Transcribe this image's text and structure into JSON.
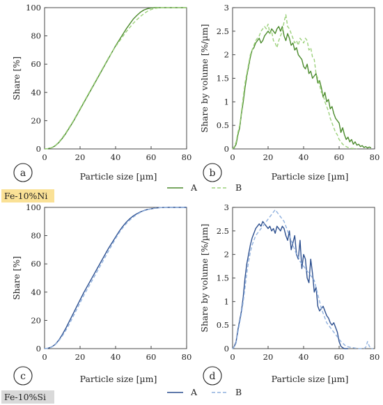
{
  "colors": {
    "ni_a": "#4a8a2b",
    "ni_b": "#9bd07a",
    "si_a": "#2c4f8f",
    "si_b": "#8fb0de",
    "ni_box": "#fae196",
    "si_box": "#d9d9d9"
  },
  "groups": [
    {
      "id": "ni",
      "label": "Fe-10%Ni",
      "legend": {
        "a": "A",
        "b": "B"
      }
    },
    {
      "id": "si",
      "label": "Fe-10%Si",
      "legend": {
        "a": "A",
        "b": "B"
      }
    }
  ],
  "chart_data": [
    {
      "panel": "a",
      "type": "line",
      "xlabel": "Particle size  [µm]",
      "ylabel": "Share [%]",
      "xlim": [
        0,
        80
      ],
      "ylim": [
        0,
        100
      ],
      "xticks": [
        0,
        20,
        40,
        60,
        80
      ],
      "yticks": [
        0,
        20,
        40,
        60,
        80,
        100
      ],
      "series": [
        {
          "name": "A",
          "style": "solid",
          "color": "#4a8a2b",
          "x": [
            0,
            2,
            4,
            6,
            8,
            10,
            12,
            14,
            16,
            18,
            20,
            22,
            24,
            26,
            28,
            30,
            32,
            34,
            36,
            38,
            40,
            42,
            44,
            46,
            48,
            50,
            52,
            54,
            56,
            58,
            60,
            62,
            64,
            66,
            70,
            75,
            80
          ],
          "y": [
            0,
            0.2,
            0.8,
            2.2,
            4.5,
            7.5,
            11,
            15,
            19,
            23.5,
            28,
            32.5,
            37,
            41.5,
            46,
            50.5,
            55,
            59.5,
            64,
            68.5,
            73,
            77,
            81,
            85,
            88.5,
            92,
            94.5,
            96.8,
            98.4,
            99.3,
            99.8,
            100,
            100,
            100,
            100,
            100,
            100
          ]
        },
        {
          "name": "B",
          "style": "dashed",
          "color": "#9bd07a",
          "x": [
            0,
            2,
            4,
            6,
            8,
            10,
            12,
            14,
            16,
            18,
            20,
            22,
            24,
            26,
            28,
            30,
            32,
            34,
            36,
            38,
            40,
            42,
            44,
            46,
            48,
            50,
            52,
            54,
            56,
            58,
            60,
            62,
            64,
            66,
            70,
            75,
            80
          ],
          "y": [
            0,
            0.2,
            0.9,
            2.4,
            4.8,
            8,
            11.5,
            15.5,
            19.5,
            24,
            28.5,
            33,
            37.5,
            42,
            46.5,
            51,
            55.5,
            60,
            64.5,
            68.5,
            72.5,
            76,
            79.5,
            83,
            86,
            89,
            91.5,
            93.8,
            95.8,
            97.5,
            98.7,
            99.4,
            99.8,
            100,
            100,
            100,
            100
          ]
        }
      ]
    },
    {
      "panel": "b",
      "type": "line",
      "xlabel": "Particle size  [µm]",
      "ylabel": "Share by volume [%/µm]",
      "xlim": [
        0,
        80
      ],
      "ylim": [
        0,
        3
      ],
      "xticks": [
        0,
        20,
        40,
        60,
        80
      ],
      "yticks": [
        0,
        0.5,
        1,
        1.5,
        2,
        2.5,
        3
      ],
      "series": [
        {
          "name": "A",
          "style": "solid",
          "color": "#4a8a2b",
          "x": [
            0,
            1,
            2,
            3,
            4,
            5,
            6,
            7,
            8,
            9,
            10,
            11,
            12,
            13,
            14,
            15,
            16,
            17,
            18,
            19,
            20,
            21,
            22,
            23,
            24,
            25,
            26,
            27,
            28,
            29,
            30,
            31,
            32,
            33,
            34,
            35,
            36,
            37,
            38,
            39,
            40,
            41,
            42,
            43,
            44,
            45,
            46,
            47,
            48,
            49,
            50,
            51,
            52,
            53,
            54,
            55,
            56,
            57,
            58,
            59,
            60,
            61,
            62,
            63,
            64,
            65,
            66,
            67,
            68,
            69,
            70,
            71,
            72,
            73,
            74,
            75,
            76,
            77,
            78
          ],
          "y": [
            0,
            0.03,
            0.1,
            0.3,
            0.45,
            0.75,
            1.0,
            1.3,
            1.55,
            1.75,
            1.95,
            2.1,
            2.15,
            2.25,
            2.3,
            2.35,
            2.25,
            2.3,
            2.4,
            2.45,
            2.5,
            2.45,
            2.55,
            2.5,
            2.45,
            2.55,
            2.6,
            2.5,
            2.6,
            2.4,
            2.3,
            2.45,
            2.35,
            2.2,
            2.25,
            2.1,
            2.15,
            2.0,
            1.95,
            1.9,
            1.75,
            1.7,
            1.8,
            1.6,
            1.65,
            1.5,
            1.55,
            1.6,
            1.4,
            1.45,
            1.3,
            1.1,
            1.2,
            1.0,
            1.05,
            0.85,
            0.9,
            0.75,
            0.65,
            0.6,
            0.55,
            0.35,
            0.45,
            0.3,
            0.2,
            0.25,
            0.15,
            0.2,
            0.1,
            0.15,
            0.08,
            0.1,
            0.05,
            0.07,
            0.03,
            0.05,
            0.02,
            0.04,
            0.02
          ]
        },
        {
          "name": "B",
          "style": "dashed",
          "color": "#9bd07a",
          "x": [
            0,
            1,
            2,
            3,
            4,
            5,
            6,
            7,
            8,
            9,
            10,
            11,
            12,
            13,
            14,
            15,
            16,
            17,
            18,
            19,
            20,
            21,
            22,
            23,
            24,
            25,
            26,
            27,
            28,
            29,
            30,
            31,
            32,
            33,
            34,
            35,
            36,
            37,
            38,
            39,
            40,
            41,
            42,
            43,
            44,
            45,
            46,
            47,
            48,
            49,
            50,
            51,
            52,
            53,
            54,
            55,
            56,
            57,
            58,
            59,
            60,
            61,
            62,
            63,
            64,
            65,
            66,
            67,
            68,
            69,
            70
          ],
          "y": [
            0,
            0.05,
            0.15,
            0.35,
            0.5,
            0.8,
            1.1,
            1.4,
            1.6,
            1.8,
            2.0,
            2.1,
            2.2,
            2.3,
            2.35,
            2.4,
            2.5,
            2.55,
            2.6,
            2.55,
            2.65,
            2.45,
            2.5,
            2.3,
            2.25,
            2.15,
            2.3,
            2.4,
            2.5,
            2.7,
            2.85,
            2.6,
            2.55,
            2.45,
            2.35,
            2.25,
            2.3,
            2.2,
            2.35,
            2.3,
            2.25,
            2.35,
            2.3,
            2.1,
            2.15,
            1.95,
            1.9,
            1.6,
            1.5,
            1.35,
            1.2,
            1.15,
            1.0,
            0.9,
            0.8,
            0.65,
            0.55,
            0.45,
            0.35,
            0.3,
            0.2,
            0.15,
            0.1,
            0.07,
            0.05,
            0.03,
            0.02,
            0.01,
            0.01,
            0,
            0
          ]
        }
      ]
    },
    {
      "panel": "c",
      "type": "line",
      "xlabel": "Particle size [µm]",
      "ylabel": "Share [%]",
      "xlim": [
        0,
        80
      ],
      "ylim": [
        0,
        100
      ],
      "xticks": [
        0,
        20,
        40,
        60,
        80
      ],
      "yticks": [
        0,
        20,
        40,
        60,
        80,
        100
      ],
      "series": [
        {
          "name": "A",
          "style": "solid",
          "color": "#2c4f8f",
          "x": [
            0,
            2,
            4,
            6,
            8,
            10,
            12,
            14,
            16,
            18,
            20,
            22,
            24,
            26,
            28,
            30,
            32,
            34,
            36,
            38,
            40,
            42,
            44,
            46,
            48,
            50,
            52,
            54,
            56,
            58,
            60,
            62,
            64,
            66,
            70,
            75,
            80
          ],
          "y": [
            0,
            0.3,
            1.2,
            3,
            6,
            10,
            14.5,
            19.5,
            24.5,
            29.5,
            34.5,
            39.5,
            44,
            48.5,
            53,
            57.5,
            62,
            66.5,
            71,
            75,
            79,
            83,
            86.5,
            89.5,
            92,
            94,
            95.5,
            96.8,
            97.8,
            98.5,
            99,
            99.4,
            99.7,
            99.9,
            100,
            100,
            100
          ]
        },
        {
          "name": "B",
          "style": "dashed",
          "color": "#8fb0de",
          "x": [
            0,
            2,
            4,
            6,
            8,
            10,
            12,
            14,
            16,
            18,
            20,
            22,
            24,
            26,
            28,
            30,
            32,
            34,
            36,
            38,
            40,
            42,
            44,
            46,
            48,
            50,
            52,
            54,
            56,
            58,
            60,
            62,
            64,
            66,
            70,
            75,
            80
          ],
          "y": [
            0,
            0.3,
            1.1,
            2.8,
            5.5,
            9,
            13,
            17.5,
            22.5,
            27.5,
            32.5,
            37.5,
            42,
            46.5,
            51,
            55.5,
            60,
            64.5,
            69,
            73.5,
            78,
            82,
            85.5,
            88.5,
            91,
            93.2,
            95,
            96.5,
            97.6,
            98.4,
            99,
            99.4,
            99.7,
            99.9,
            100,
            100,
            100
          ]
        }
      ]
    },
    {
      "panel": "d",
      "type": "line",
      "xlabel": "Particle size [µm]",
      "ylabel": "Share by volume [%/µm]",
      "xlim": [
        0,
        80
      ],
      "ylim": [
        0,
        3
      ],
      "xticks": [
        0,
        20,
        40,
        60,
        80
      ],
      "yticks": [
        0,
        0.5,
        1,
        1.5,
        2,
        2.5,
        3
      ],
      "series": [
        {
          "name": "A",
          "style": "solid",
          "color": "#2c4f8f",
          "x": [
            0,
            1,
            2,
            3,
            4,
            5,
            6,
            7,
            8,
            9,
            10,
            11,
            12,
            13,
            14,
            15,
            16,
            17,
            18,
            19,
            20,
            21,
            22,
            23,
            24,
            25,
            26,
            27,
            28,
            29,
            30,
            31,
            32,
            33,
            34,
            35,
            36,
            37,
            38,
            39,
            40,
            41,
            42,
            43,
            44,
            45,
            46,
            47,
            48,
            49,
            50,
            51,
            52,
            53,
            54,
            55,
            56,
            57,
            58,
            59,
            60,
            61,
            62,
            63,
            64,
            65
          ],
          "y": [
            0,
            0.05,
            0.15,
            0.4,
            0.6,
            0.8,
            1.1,
            1.5,
            1.8,
            2.0,
            2.2,
            2.35,
            2.45,
            2.55,
            2.6,
            2.65,
            2.6,
            2.7,
            2.65,
            2.6,
            2.55,
            2.6,
            2.5,
            2.55,
            2.45,
            2.6,
            2.55,
            2.5,
            2.6,
            2.55,
            2.4,
            2.3,
            2.5,
            2.1,
            2.25,
            2.4,
            2.0,
            1.9,
            2.3,
            1.7,
            2.0,
            1.9,
            1.5,
            1.4,
            1.9,
            1.6,
            1.2,
            1.3,
            0.9,
            0.8,
            0.85,
            0.9,
            0.8,
            0.7,
            0.65,
            0.55,
            0.5,
            0.55,
            0.45,
            0.35,
            0.15,
            0.05,
            0.02,
            0,
            0,
            0
          ]
        },
        {
          "name": "B",
          "style": "dashed",
          "color": "#8fb0de",
          "x": [
            0,
            1,
            2,
            3,
            4,
            5,
            6,
            7,
            8,
            9,
            10,
            11,
            12,
            13,
            14,
            15,
            16,
            17,
            18,
            19,
            20,
            21,
            22,
            23,
            24,
            25,
            26,
            27,
            28,
            29,
            30,
            31,
            32,
            33,
            34,
            35,
            36,
            37,
            38,
            39,
            40,
            41,
            42,
            43,
            44,
            45,
            46,
            47,
            48,
            49,
            50,
            51,
            52,
            53,
            54,
            55,
            56,
            57,
            58,
            59,
            60,
            61,
            62,
            63,
            64,
            65,
            66,
            67,
            68,
            69,
            70,
            71,
            72,
            73,
            74,
            75,
            76,
            77,
            78,
            79
          ],
          "y": [
            0,
            0.04,
            0.12,
            0.35,
            0.55,
            0.75,
            1.0,
            1.3,
            1.6,
            1.85,
            2.05,
            2.2,
            2.3,
            2.4,
            2.45,
            2.5,
            2.55,
            2.6,
            2.65,
            2.7,
            2.75,
            2.8,
            2.85,
            2.9,
            2.95,
            2.9,
            2.85,
            2.8,
            2.75,
            2.7,
            2.6,
            2.5,
            2.4,
            2.3,
            2.2,
            2.1,
            2.0,
            1.95,
            1.85,
            1.8,
            1.75,
            1.7,
            1.65,
            1.6,
            1.55,
            1.5,
            1.45,
            1.3,
            1.15,
            1.0,
            0.85,
            0.75,
            0.65,
            0.55,
            0.5,
            0.45,
            0.4,
            0.35,
            0.3,
            0.25,
            0.2,
            0.15,
            0.12,
            0.08,
            0.05,
            0.04,
            0.03,
            0.02,
            0.02,
            0.01,
            0.01,
            0,
            0,
            0,
            0,
            0.03,
            0.15,
            0.05,
            0,
            0
          ]
        }
      ]
    }
  ]
}
